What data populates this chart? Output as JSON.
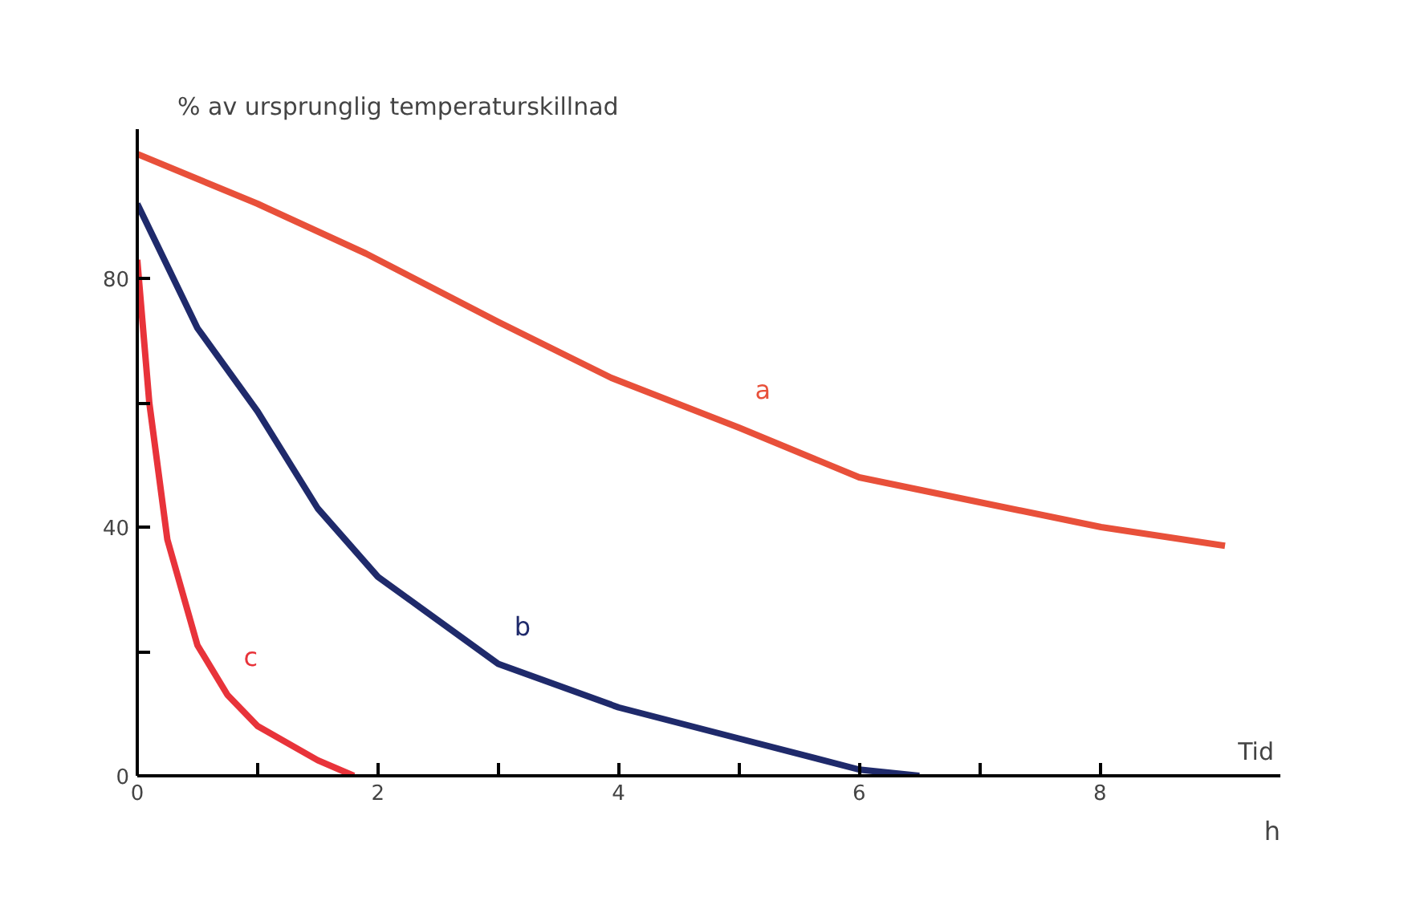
{
  "chart_data": {
    "type": "line",
    "ylabel": "% av ursprunglig temperaturskillnad",
    "xlabel": "Tid",
    "annotations": [
      "h"
    ],
    "xlim": [
      0,
      9.5
    ],
    "ylim": [
      0,
      104
    ],
    "xticks": [
      0,
      {
        "value": 1,
        "label": null
      },
      2,
      {
        "value": 3,
        "label": null
      },
      4,
      {
        "value": 5,
        "label": null
      },
      6,
      {
        "value": 7,
        "label": null
      },
      8
    ],
    "yticks": [
      0,
      {
        "value": 20,
        "label": null
      },
      40,
      {
        "value": 60,
        "label": null
      },
      80
    ],
    "grid": false,
    "legend": false,
    "marker": "none",
    "line_style": "solid",
    "series": [
      {
        "name": "a",
        "color": "#e8503a",
        "x": [
          0,
          1,
          1.9,
          3,
          3.94,
          5,
          6,
          7,
          8.01,
          9.04
        ],
        "values": [
          100,
          92,
          84,
          73,
          64,
          56,
          48,
          44,
          40,
          37
        ]
      },
      {
        "name": "b",
        "color": "#1f2a6b",
        "x": [
          0,
          0.5,
          1,
          1.5,
          2,
          3,
          4,
          5,
          6,
          6.5
        ],
        "values": [
          92,
          72,
          58.6,
          43,
          32,
          18,
          11,
          6,
          1,
          0
        ]
      },
      {
        "name": "c",
        "color": "#e8333a",
        "x": [
          0,
          0.1,
          0.25,
          0.5,
          0.75,
          1,
          1.5,
          1.8
        ],
        "values": [
          83,
          60,
          38,
          21,
          13,
          8,
          2.5,
          0
        ]
      }
    ]
  }
}
